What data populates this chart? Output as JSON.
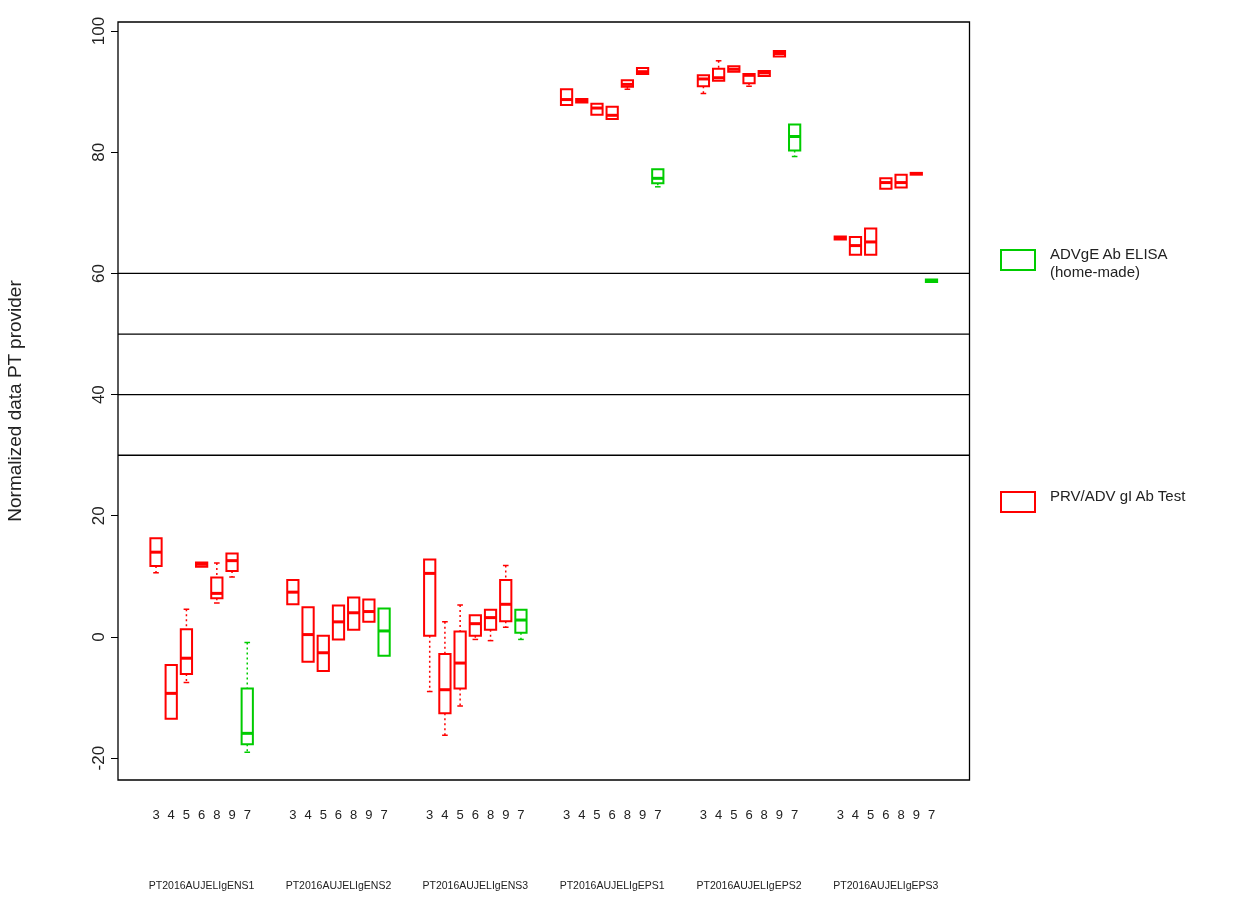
{
  "chart_data": {
    "type": "box",
    "ylabel": "Normalized data PT provider",
    "categories": [
      null,
      null,
      "3",
      "4",
      "5",
      "6",
      "8",
      "9",
      "7",
      null,
      null,
      "3",
      "4",
      "5",
      "6",
      "8",
      "9",
      "7",
      null,
      null,
      "3",
      "4",
      "5",
      "6",
      "8",
      "9",
      "7",
      null,
      null,
      "3",
      "4",
      "5",
      "6",
      "8",
      "9",
      "7",
      null,
      null,
      "3",
      "4",
      "5",
      "6",
      "8",
      "9",
      "7",
      null,
      null,
      "3",
      "4",
      "5",
      "6",
      "8",
      "9",
      "7",
      null,
      null
    ],
    "ylim": [
      -23.6,
      101.5
    ],
    "yticks": [
      -20,
      0,
      20,
      40,
      60,
      80,
      100
    ],
    "grid": false,
    "legend": "right",
    "line_style": "dotted",
    "ref_lines": [
      {
        "axis": "y",
        "value": 30,
        "color": "#000000"
      },
      {
        "axis": "y",
        "value": 40,
        "color": "#000000"
      },
      {
        "axis": "y",
        "value": 50,
        "color": "#000000"
      },
      {
        "axis": "y",
        "value": 60,
        "color": "#000000"
      }
    ],
    "annotations": [
      "PT2016AUJELIgENS1",
      "PT2016AUJELIgENS2",
      "PT2016AUJELIgENS3",
      "PT2016AUJELIgEPS1",
      "PT2016AUJELIgEPS2",
      "PT2016AUJELIgEPS3"
    ],
    "series": [
      {
        "name": "ADVgE Ab ELISA (home-made)",
        "color": "#00cc00",
        "boxes": [
          null,
          null,
          null,
          null,
          null,
          null,
          null,
          null,
          {
            "low": -19.0,
            "q1": -17.7,
            "median": -15.9,
            "q3": -8.5,
            "high": -0.9
          },
          null,
          null,
          null,
          null,
          null,
          null,
          null,
          null,
          {
            "low": -3.1,
            "q1": -3.1,
            "median": 1.0,
            "q3": 4.7,
            "high": 4.7
          },
          null,
          null,
          null,
          null,
          null,
          null,
          null,
          null,
          {
            "low": -0.4,
            "q1": 0.7,
            "median": 2.8,
            "q3": 4.5,
            "high": 4.8
          },
          null,
          null,
          null,
          null,
          null,
          null,
          null,
          null,
          {
            "low": 74.3,
            "q1": 74.9,
            "median": 75.7,
            "q3": 77.2,
            "high": 77.2
          },
          null,
          null,
          null,
          null,
          null,
          null,
          null,
          null,
          {
            "low": 79.3,
            "q1": 80.3,
            "median": 82.6,
            "q3": 84.6,
            "high": 84.6
          },
          null,
          null,
          null,
          null,
          null,
          null,
          null,
          null,
          {
            "low": 58.6,
            "q1": 58.6,
            "median": 58.8,
            "q3": 59.0,
            "high": 59.0
          },
          null,
          null
        ]
      },
      {
        "name": "PRV/ADV gI Ab Test",
        "color": "#ff0000",
        "boxes": [
          null,
          null,
          {
            "low": 10.6,
            "q1": 11.7,
            "median": 14.0,
            "q3": 16.3,
            "high": 16.6
          },
          {
            "low": -13.5,
            "q1": -13.5,
            "median": -9.3,
            "q3": -4.6,
            "high": -4.6
          },
          {
            "low": -7.5,
            "q1": -6.1,
            "median": -3.5,
            "q3": 1.3,
            "high": 4.6
          },
          {
            "low": 11.6,
            "q1": 11.6,
            "median": 12.0,
            "q3": 12.3,
            "high": 12.3
          },
          {
            "low": 5.6,
            "q1": 6.4,
            "median": 7.2,
            "q3": 9.8,
            "high": 12.2
          },
          {
            "low": 9.9,
            "q1": 10.9,
            "median": 12.6,
            "q3": 13.8,
            "high": 14.1
          },
          null,
          null,
          null,
          {
            "low": 5.4,
            "q1": 5.4,
            "median": 7.4,
            "q3": 9.4,
            "high": 9.4
          },
          {
            "low": -4.1,
            "q1": -4.1,
            "median": 0.4,
            "q3": 4.9,
            "high": 4.9
          },
          {
            "low": -5.6,
            "q1": -5.6,
            "median": -2.6,
            "q3": 0.2,
            "high": 0.2
          },
          {
            "low": -0.4,
            "q1": -0.4,
            "median": 2.5,
            "q3": 5.2,
            "high": 5.2
          },
          {
            "low": 1.2,
            "q1": 1.2,
            "median": 4.0,
            "q3": 6.5,
            "high": 6.5
          },
          {
            "low": 2.5,
            "q1": 2.5,
            "median": 4.2,
            "q3": 6.2,
            "high": 6.2
          },
          null,
          null,
          null,
          {
            "low": -9.0,
            "q1": 0.2,
            "median": 10.5,
            "q3": 12.8,
            "high": 12.9
          },
          {
            "low": -16.2,
            "q1": -12.6,
            "median": -8.7,
            "q3": -2.8,
            "high": 2.5
          },
          {
            "low": -11.4,
            "q1": -8.5,
            "median": -4.3,
            "q3": 0.9,
            "high": 5.3
          },
          {
            "low": -0.4,
            "q1": 0.2,
            "median": 2.2,
            "q3": 3.6,
            "high": 3.6
          },
          {
            "low": -0.6,
            "q1": 1.2,
            "median": 3.2,
            "q3": 4.5,
            "high": 4.7
          },
          {
            "low": 1.6,
            "q1": 2.6,
            "median": 5.4,
            "q3": 9.4,
            "high": 11.8
          },
          null,
          null,
          null,
          {
            "low": 87.8,
            "q1": 87.8,
            "median": 88.7,
            "q3": 90.4,
            "high": 90.7
          },
          {
            "low": 87.9,
            "q1": 88.2,
            "median": 88.5,
            "q3": 88.8,
            "high": 88.8
          },
          {
            "low": 86.0,
            "q1": 86.2,
            "median": 87.3,
            "q3": 88.0,
            "high": 88.3
          },
          {
            "low": 85.5,
            "q1": 85.5,
            "median": 86.1,
            "q3": 87.5,
            "high": 87.6
          },
          {
            "low": 90.4,
            "q1": 90.8,
            "median": 91.2,
            "q3": 91.9,
            "high": 91.9
          },
          {
            "low": 92.9,
            "q1": 92.9,
            "median": 93.3,
            "q3": 93.9,
            "high": 93.9
          },
          null,
          null,
          null,
          {
            "low": 89.7,
            "q1": 90.9,
            "median": 92.1,
            "q3": 92.7,
            "high": 92.7
          },
          {
            "low": 91.5,
            "q1": 91.8,
            "median": 92.3,
            "q3": 93.8,
            "high": 95.1
          },
          {
            "low": 93.3,
            "q1": 93.3,
            "median": 93.7,
            "q3": 94.2,
            "high": 94.2
          },
          {
            "low": 90.9,
            "q1": 91.4,
            "median": 92.7,
            "q3": 92.9,
            "high": 93.2
          },
          {
            "low": 92.3,
            "q1": 92.6,
            "median": 93.1,
            "q3": 93.4,
            "high": 93.4
          },
          {
            "low": 95.8,
            "q1": 95.8,
            "median": 96.3,
            "q3": 96.7,
            "high": 96.7
          },
          null,
          null,
          null,
          {
            "low": 65.6,
            "q1": 65.6,
            "median": 65.8,
            "q3": 66.1,
            "high": 66.1
          },
          {
            "low": 63.1,
            "q1": 63.1,
            "median": 64.6,
            "q3": 66.0,
            "high": 66.0
          },
          {
            "low": 63.1,
            "q1": 63.1,
            "median": 65.2,
            "q3": 67.4,
            "high": 67.4
          },
          {
            "low": 74.0,
            "q1": 74.0,
            "median": 75.0,
            "q3": 75.7,
            "high": 75.7
          },
          {
            "low": 74.2,
            "q1": 74.2,
            "median": 75.0,
            "q3": 76.3,
            "high": 76.3
          },
          {
            "low": 76.3,
            "q1": 76.3,
            "median": 76.5,
            "q3": 76.6,
            "high": 76.6
          },
          null,
          null,
          null
        ]
      }
    ]
  }
}
